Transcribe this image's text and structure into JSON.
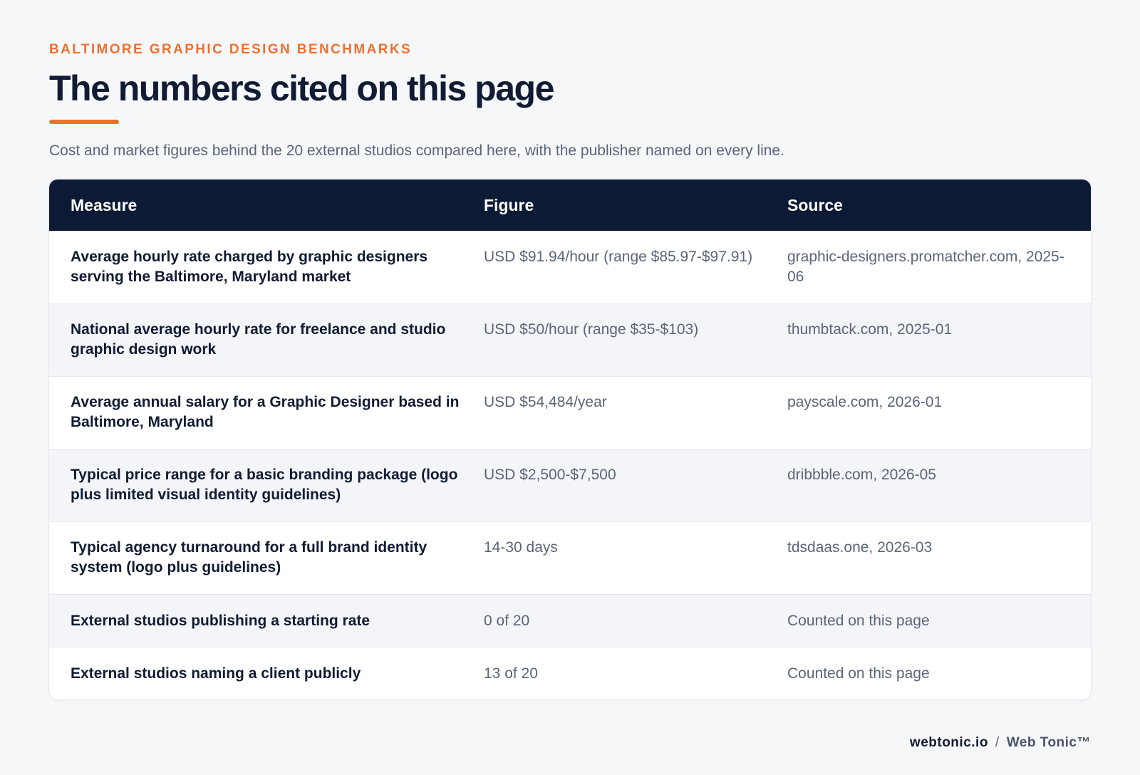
{
  "header": {
    "eyebrow": "BALTIMORE GRAPHIC DESIGN BENCHMARKS",
    "title": "The numbers cited on this page",
    "subtitle": "Cost and market figures behind the 20 external studios compared here, with the publisher named on every line."
  },
  "table": {
    "columns": [
      "Measure",
      "Figure",
      "Source"
    ],
    "rows": [
      {
        "measure": "Average hourly rate charged by graphic designers serving the Baltimore, Maryland market",
        "figure": "USD $91.94/hour (range $85.97-$97.91)",
        "source": "graphic-designers.promatcher.com, 2025-06"
      },
      {
        "measure": "National average hourly rate for freelance and studio graphic design work",
        "figure": "USD $50/hour (range $35-$103)",
        "source": "thumbtack.com, 2025-01"
      },
      {
        "measure": "Average annual salary for a Graphic Designer based in Baltimore, Maryland",
        "figure": "USD $54,484/year",
        "source": "payscale.com, 2026-01"
      },
      {
        "measure": "Typical price range for a basic branding package (logo plus limited visual identity guidelines)",
        "figure": "USD $2,500-$7,500",
        "source": "dribbble.com, 2026-05"
      },
      {
        "measure": "Typical agency turnaround for a full brand identity system (logo plus guidelines)",
        "figure": "14-30 days",
        "source": "tdsdaas.one, 2026-03"
      },
      {
        "measure": "External studios publishing a starting rate",
        "figure": "0 of 20",
        "source": "Counted on this page"
      },
      {
        "measure": "External studios naming a client publicly",
        "figure": "13 of 20",
        "source": "Counted on this page"
      }
    ]
  },
  "footer": {
    "domain": "webtonic.io",
    "separator": "/",
    "brand": "Web Tonic™"
  },
  "colors": {
    "accent": "#ef7030",
    "header_bg": "#0c1a35",
    "page_bg": "#f6f7f9",
    "alt_row_bg": "#f3f5f8",
    "text_dark": "#111b33",
    "text_muted": "#5b6577"
  }
}
